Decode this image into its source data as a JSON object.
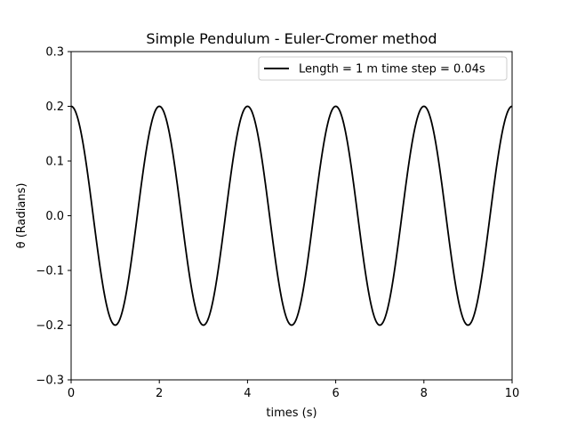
{
  "chart_data": {
    "type": "line",
    "title": "Simple Pendulum - Euler-Cromer method",
    "xlabel": "times (s)",
    "ylabel": "θ (Radians)",
    "xlim": [
      0,
      10
    ],
    "ylim": [
      -0.3,
      0.3
    ],
    "xticks": [
      0,
      2,
      4,
      6,
      8,
      10
    ],
    "xtick_labels": [
      "0",
      "2",
      "4",
      "6",
      "8",
      "10"
    ],
    "yticks": [
      -0.3,
      -0.2,
      -0.1,
      0.0,
      0.1,
      0.2,
      0.3
    ],
    "ytick_labels": [
      "−0.3",
      "−0.2",
      "−0.1",
      "0.0",
      "0.1",
      "0.2",
      "0.3"
    ],
    "grid": false,
    "legend_position": "top-right",
    "series": [
      {
        "name": "Length = 1 m  time step = 0.04s",
        "color": "#000000",
        "amplitude": 0.2,
        "period": 2.0,
        "time_step": 0.04,
        "x_start": 0,
        "x_end": 10
      }
    ]
  }
}
